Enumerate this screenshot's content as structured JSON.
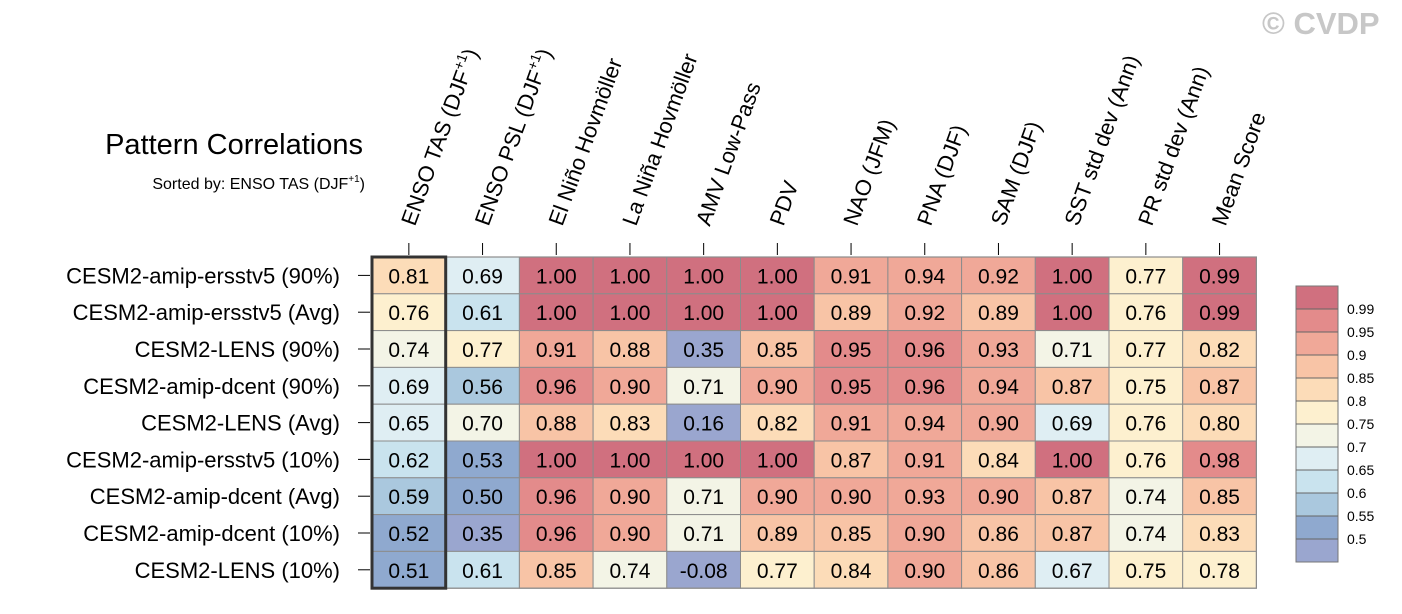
{
  "watermark": "© CVDP",
  "chart_data": {
    "type": "heatmap",
    "title": "Pattern Correlations",
    "subtitle": "Sorted by: ENSO TAS (DJF",
    "subtitle_sup": "+1",
    "subtitle_end": ")",
    "columns": [
      {
        "base": "ENSO TAS (DJF",
        "sup": "+1",
        "end": ")"
      },
      {
        "base": "ENSO PSL (DJF",
        "sup": "+1",
        "end": ")"
      },
      {
        "base": "El Niño Hovmöller"
      },
      {
        "base": "La Niña Hovmöller"
      },
      {
        "base": "AMV Low-Pass"
      },
      {
        "base": "PDV"
      },
      {
        "base": "NAO (JFM)"
      },
      {
        "base": "PNA (DJF)"
      },
      {
        "base": "SAM (DJF)"
      },
      {
        "base": "SST std dev (Ann)"
      },
      {
        "base": "PR std dev (Ann)"
      },
      {
        "base": "Mean Score"
      }
    ],
    "rows": [
      "CESM2-amip-ersstv5 (90%)",
      "CESM2-amip-ersstv5 (Avg)",
      "CESM2-LENS (90%)",
      "CESM2-amip-dcent (90%)",
      "CESM2-LENS (Avg)",
      "CESM2-amip-ersstv5 (10%)",
      "CESM2-amip-dcent (Avg)",
      "CESM2-amip-dcent (10%)",
      "CESM2-LENS (10%)"
    ],
    "values": [
      [
        "0.81",
        "0.69",
        "1.00",
        "1.00",
        "1.00",
        "1.00",
        "0.91",
        "0.94",
        "0.92",
        "1.00",
        "0.77",
        "0.99"
      ],
      [
        "0.76",
        "0.61",
        "1.00",
        "1.00",
        "1.00",
        "1.00",
        "0.89",
        "0.92",
        "0.89",
        "1.00",
        "0.76",
        "0.99"
      ],
      [
        "0.74",
        "0.77",
        "0.91",
        "0.88",
        "0.35",
        "0.85",
        "0.95",
        "0.96",
        "0.93",
        "0.71",
        "0.77",
        "0.82"
      ],
      [
        "0.69",
        "0.56",
        "0.96",
        "0.90",
        "0.71",
        "0.90",
        "0.95",
        "0.96",
        "0.94",
        "0.87",
        "0.75",
        "0.87"
      ],
      [
        "0.65",
        "0.70",
        "0.88",
        "0.83",
        "0.16",
        "0.82",
        "0.91",
        "0.94",
        "0.90",
        "0.69",
        "0.76",
        "0.80"
      ],
      [
        "0.62",
        "0.53",
        "1.00",
        "1.00",
        "1.00",
        "1.00",
        "0.87",
        "0.91",
        "0.84",
        "1.00",
        "0.76",
        "0.98"
      ],
      [
        "0.59",
        "0.50",
        "0.96",
        "0.90",
        "0.71",
        "0.90",
        "0.90",
        "0.93",
        "0.90",
        "0.87",
        "0.74",
        "0.85"
      ],
      [
        "0.52",
        "0.35",
        "0.96",
        "0.90",
        "0.71",
        "0.89",
        "0.85",
        "0.90",
        "0.86",
        "0.87",
        "0.74",
        "0.83"
      ],
      [
        "0.51",
        "0.61",
        "0.85",
        "0.74",
        "-0.08",
        "0.77",
        "0.84",
        "0.90",
        "0.86",
        "0.67",
        "0.75",
        "0.78"
      ]
    ],
    "sorted_column_index": 0,
    "colorbar": {
      "levels": [
        "0.99",
        "0.95",
        "0.9",
        "0.85",
        "0.8",
        "0.75",
        "0.7",
        "0.65",
        "0.6",
        "0.55",
        "0.5"
      ],
      "colors": [
        "#d0707f",
        "#e38b8b",
        "#f0a898",
        "#f8c4a6",
        "#fcdcb8",
        "#fdf0cf",
        "#f3f4e6",
        "#dfeef3",
        "#c9e3ee",
        "#aac8de",
        "#8fa9cf",
        "#9aa6cf"
      ]
    }
  }
}
